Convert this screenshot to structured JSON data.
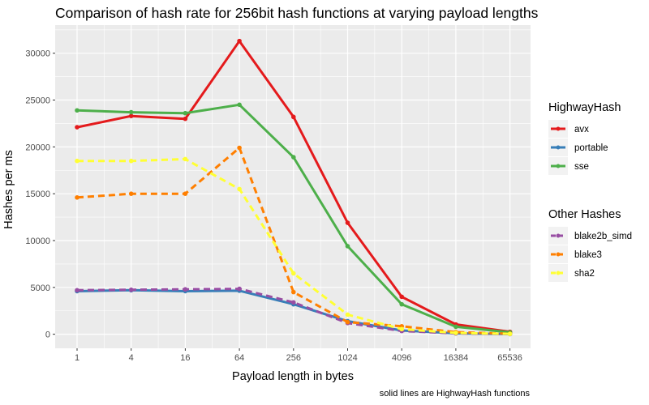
{
  "chart_data": {
    "type": "line",
    "title": "Comparison of hash rate for 256bit hash functions at varying payload lengths",
    "xlabel": "Payload length in bytes",
    "ylabel": "Hashes per ms",
    "caption": "solid lines are HighwayHash functions",
    "x_scale": "log4",
    "x": [
      1,
      4,
      16,
      64,
      256,
      1024,
      4096,
      16384,
      65536
    ],
    "x_tick_labels": [
      "1",
      "4",
      "16",
      "64",
      "256",
      "1024",
      "4096",
      "16384",
      "65536"
    ],
    "ylim": [
      -1500,
      33000
    ],
    "y_ticks": [
      0,
      5000,
      10000,
      15000,
      20000,
      25000,
      30000
    ],
    "y_tick_labels": [
      "0",
      "5000",
      "10000",
      "15000",
      "20000",
      "25000",
      "30000"
    ],
    "grid": true,
    "legend_position": "right",
    "legend_groups": [
      {
        "title": "HighwayHash",
        "items": [
          "avx",
          "portable",
          "sse"
        ]
      },
      {
        "title": "Other Hashes",
        "items": [
          "blake2b_simd",
          "blake3",
          "sha2"
        ]
      }
    ],
    "series": [
      {
        "name": "avx",
        "group": "HighwayHash",
        "dashed": false,
        "color": "#e41a1c",
        "values": [
          22100,
          23300,
          23000,
          31300,
          23200,
          11900,
          4000,
          1050,
          260
        ]
      },
      {
        "name": "portable",
        "group": "HighwayHash",
        "dashed": false,
        "color": "#377eb8",
        "values": [
          4600,
          4700,
          4600,
          4650,
          3200,
          1400,
          400,
          100,
          25
        ]
      },
      {
        "name": "sse",
        "group": "HighwayHash",
        "dashed": false,
        "color": "#4daf4a",
        "values": [
          23900,
          23700,
          23600,
          24500,
          18900,
          9400,
          3200,
          800,
          200
        ]
      },
      {
        "name": "blake2b_simd",
        "group": "Other Hashes",
        "dashed": true,
        "color": "#984ea3",
        "values": [
          4700,
          4750,
          4800,
          4850,
          3400,
          1200,
          350,
          90,
          22
        ]
      },
      {
        "name": "blake3",
        "group": "Other Hashes",
        "dashed": true,
        "color": "#ff7f00",
        "values": [
          14600,
          15000,
          15000,
          19900,
          4500,
          1300,
          850,
          230,
          60
        ]
      },
      {
        "name": "sha2",
        "group": "Other Hashes",
        "dashed": true,
        "color": "#ffff33",
        "values": [
          18500,
          18500,
          18700,
          15500,
          6500,
          2100,
          550,
          140,
          35
        ]
      }
    ]
  }
}
